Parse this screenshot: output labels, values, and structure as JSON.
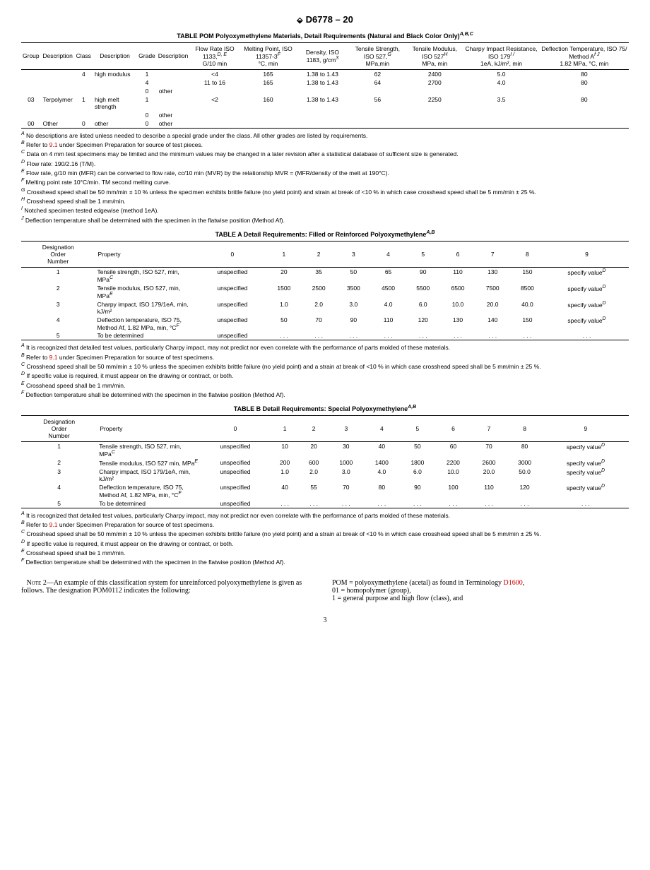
{
  "header": {
    "std": "D6778 – 20",
    "logo": "⬙"
  },
  "tablePOM": {
    "title": "TABLE POM   Polyoxymethylene Materials, Detail Requirements (Natural and Black Color Only)",
    "titleSup": "A,B,C",
    "cols": [
      "Group",
      "Description",
      "Class",
      "Description",
      "Grade",
      "Description",
      "Flow Rate ISO 1133,",
      "Melting Point, ISO 11357-3",
      "Density, ISO 1183, g/cm",
      "Tensile Strength, ISO 527,",
      "Tensile Modulus, ISO 527",
      "Charpy Impact Resistance, ISO 179",
      "Deflection Temperature, ISO 75/ Method A"
    ],
    "colSub": [
      "",
      "",
      "",
      "",
      "",
      "",
      "G/10 min",
      "°C, min",
      "",
      "MPa,min",
      "MPa, min",
      "1eA, kJ/m², min",
      "1.82 MPa, °C, min"
    ],
    "colSup": [
      "",
      "",
      "",
      "",
      "",
      "",
      "D, E",
      "F",
      "3",
      "G",
      "H",
      "I /",
      "f J"
    ],
    "rows": [
      [
        "",
        "",
        "4",
        "high modulus",
        "1",
        "",
        "<4",
        "165",
        "1.38 to 1.43",
        "62",
        "2400",
        "5.0",
        "80"
      ],
      [
        "",
        "",
        "",
        "",
        "4",
        "",
        "11 to 16",
        "165",
        "1.38 to 1.43",
        "64",
        "2700",
        "4.0",
        "80"
      ],
      [
        "",
        "",
        "",
        "",
        "0",
        "other",
        "",
        "",
        "",
        "",
        "",
        "",
        ""
      ],
      [
        "03",
        "Terpolymer",
        "1",
        "high melt strength",
        "1",
        "",
        "<2",
        "160",
        "1.38 to 1.43",
        "56",
        "2250",
        "3.5",
        "80"
      ],
      [
        "",
        "",
        "",
        "",
        "0",
        "other",
        "",
        "",
        "",
        "",
        "",
        "",
        ""
      ],
      [
        "00",
        "Other",
        "0",
        "other",
        "0",
        "other",
        "",
        "",
        "",
        "",
        "",
        "",
        ""
      ]
    ],
    "notes": [
      "No descriptions are listed unless needed to describe a special grade under the class. All other grades are listed by requirements.",
      "Refer to 9.1 under Specimen Preparation for source of test pieces.",
      "Data on 4 mm test specimens may be limited and the minimum values may be changed in a later revision after a statistical database of sufficient size is generated.",
      "Flow rate: 190/2.16 (T/M).",
      "Flow rate, g/10 min (MFR) can be converted to flow rate, cc/10 min (MVR) by the relationship MVR = (MFR/density of the melt at 190°C).",
      "Melting point rate 10°C/min. TM second melting curve.",
      "Crosshead speed shall be 50 mm/min ± 10 % unless the specimen exhibits brittle failure (no yield point) and strain at break of <10 % in which case crosshead speed shall be 5 mm/min ± 25 %.",
      "Crosshead speed shall be 1 mm/min.",
      "Notched specimen tested edgewise (method 1eA).",
      "Deflection temperature shall be determined with the specimen in the flatwise position (Method Af)."
    ],
    "noteSup": [
      "A",
      "B",
      "C",
      "D",
      "E",
      "F",
      "G",
      "H",
      "I",
      "J"
    ]
  },
  "tableA": {
    "title": "TABLE A    Detail Requirements: Filled or Reinforced Polyoxymethylene",
    "titleSup": "A,B",
    "cols": [
      "Designation Order Number",
      "Property",
      "0",
      "1",
      "2",
      "3",
      "4",
      "5",
      "6",
      "7",
      "8",
      "9"
    ],
    "rows": [
      [
        "1",
        "Tensile strength, ISO 527, min, MPa",
        "C",
        "unspecified",
        "20",
        "35",
        "50",
        "65",
        "90",
        "110",
        "130",
        "150",
        "specify value",
        "D"
      ],
      [
        "2",
        "Tensile modulus, ISO 527, min, MPa",
        "E",
        "unspecified",
        "1500",
        "2500",
        "3500",
        "4500",
        "5500",
        "6500",
        "7500",
        "8500",
        "specify value",
        "D"
      ],
      [
        "3",
        "Charpy impact, ISO 179/1eA, min, kJ/m²",
        "",
        "unspecified",
        "1.0",
        "2.0",
        "3.0",
        "4.0",
        "6.0",
        "10.0",
        "20.0",
        "40.0",
        "specify value",
        "D"
      ],
      [
        "4",
        "Deflection temperature, ISO 75, Method Af, 1.82 MPa, min, °C",
        "F",
        "unspecified",
        "50",
        "70",
        "90",
        "110",
        "120",
        "130",
        "140",
        "150",
        "specify value",
        "D"
      ],
      [
        "5",
        "To be determined",
        "",
        "unspecified",
        ". . .",
        ". . .",
        ". . .",
        ". . .",
        ". . .",
        ". . .",
        ". . .",
        ". . .",
        ". . .",
        ""
      ]
    ],
    "notes": [
      "It is recognized that detailed test values, particularly Charpy impact, may not predict nor even correlate with the performance of parts molded of these materials.",
      "Refer to 9.1 under Specimen Preparation for source of test specimens.",
      "Crosshead speed shall be 50 mm/min ± 10 % unless the specimen exhibits brittle failure (no yield point) and a strain at break of <10 % in which case crosshead speed shall be 5 mm/min ± 25 %.",
      "If specific value is required, it must appear on the drawing or contract, or both.",
      "Crosshead speed shall be 1 mm/min.",
      "Deflection temperature shall be determined with the specimen in the flatwise position (Method Af)."
    ],
    "noteSup": [
      "A",
      "B",
      "C",
      "D",
      "E",
      "F"
    ]
  },
  "tableB": {
    "title": "TABLE B    Detail Requirements: Special Polyoxymethylene",
    "titleSup": "A,B",
    "rows": [
      [
        "1",
        "Tensile strength, ISO 527, min, MPa",
        "C",
        "unspecified",
        "10",
        "20",
        "30",
        "40",
        "50",
        "60",
        "70",
        "80",
        "specify value",
        "D"
      ],
      [
        "2",
        "Tensile modulus, ISO 527 min, MPa",
        "E",
        "unspecified",
        "200",
        "600",
        "1000",
        "1400",
        "1800",
        "2200",
        "2600",
        "3000",
        "specify value",
        "D"
      ],
      [
        "3",
        "Charpy impact, ISO 179/1eA, min, kJ/m²",
        "",
        "unspecified",
        "1.0",
        "2.0",
        "3.0",
        "4.0",
        "6.0",
        "10.0",
        "20.0",
        "50.0",
        "specify value",
        "D"
      ],
      [
        "4",
        "Deflection temperature, ISO 75, Method Af, 1.82 MPa, min, °C",
        "F",
        "unspecified",
        "40",
        "55",
        "70",
        "80",
        "90",
        "100",
        "110",
        "120",
        "specify value",
        "D"
      ],
      [
        "5",
        "To be determined",
        "",
        "unspecified",
        ". . .",
        ". . .",
        ". . .",
        ". . .",
        ". . .",
        ". . .",
        ". . .",
        ". . .",
        ". . .",
        ""
      ]
    ]
  },
  "body": {
    "noteLabel": "Note 2",
    "noteText": "—An example of this classification system for unreinforced polyoxymethylene is given as follows. The designation POM0112 indicates the following:",
    "right1": "POM = polyoxymethylene (acetal) as found in Terminology ",
    "right1link": "D1600",
    "right1b": ",",
    "right2": "01 = homopolymer (group),",
    "right3": "1 = general purpose and high flow (class), and"
  },
  "pageNum": "3"
}
